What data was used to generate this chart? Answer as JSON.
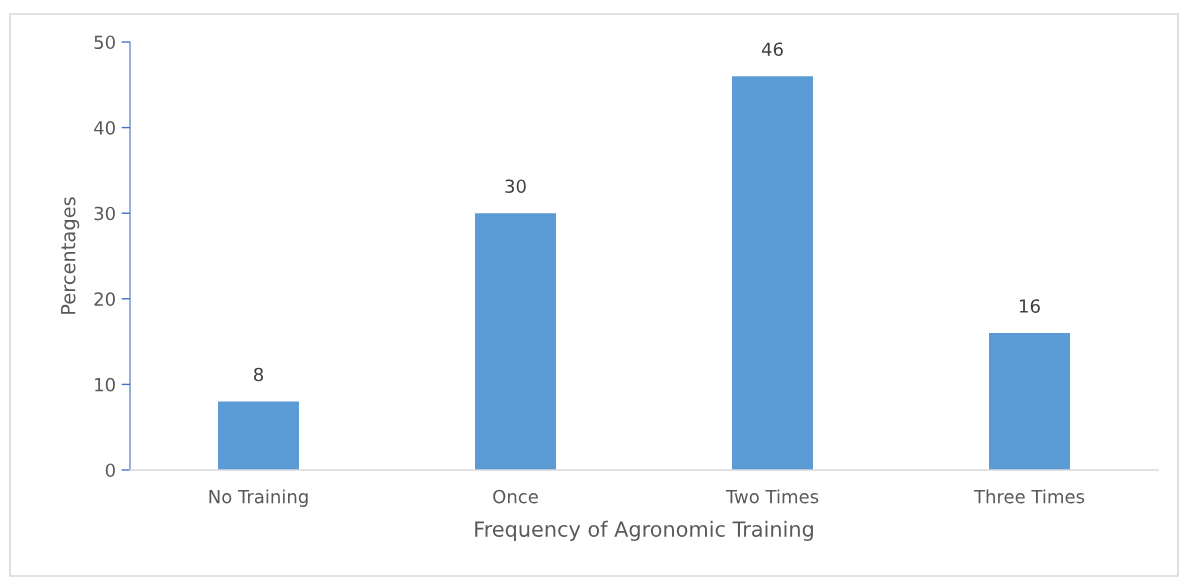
{
  "chart_data": {
    "type": "bar",
    "xlabel": "Frequency of Agronomic Training",
    "ylabel": "Percentages",
    "categories": [
      "No Training",
      "Once",
      "Two Times",
      "Three Times"
    ],
    "values": [
      8,
      30,
      46,
      16
    ],
    "color": "#5b9bd5",
    "ylim": [
      0,
      50
    ],
    "yticks": [
      0,
      10,
      20,
      30,
      40,
      50
    ],
    "data_labels": true,
    "grid": false,
    "legend": false
  }
}
